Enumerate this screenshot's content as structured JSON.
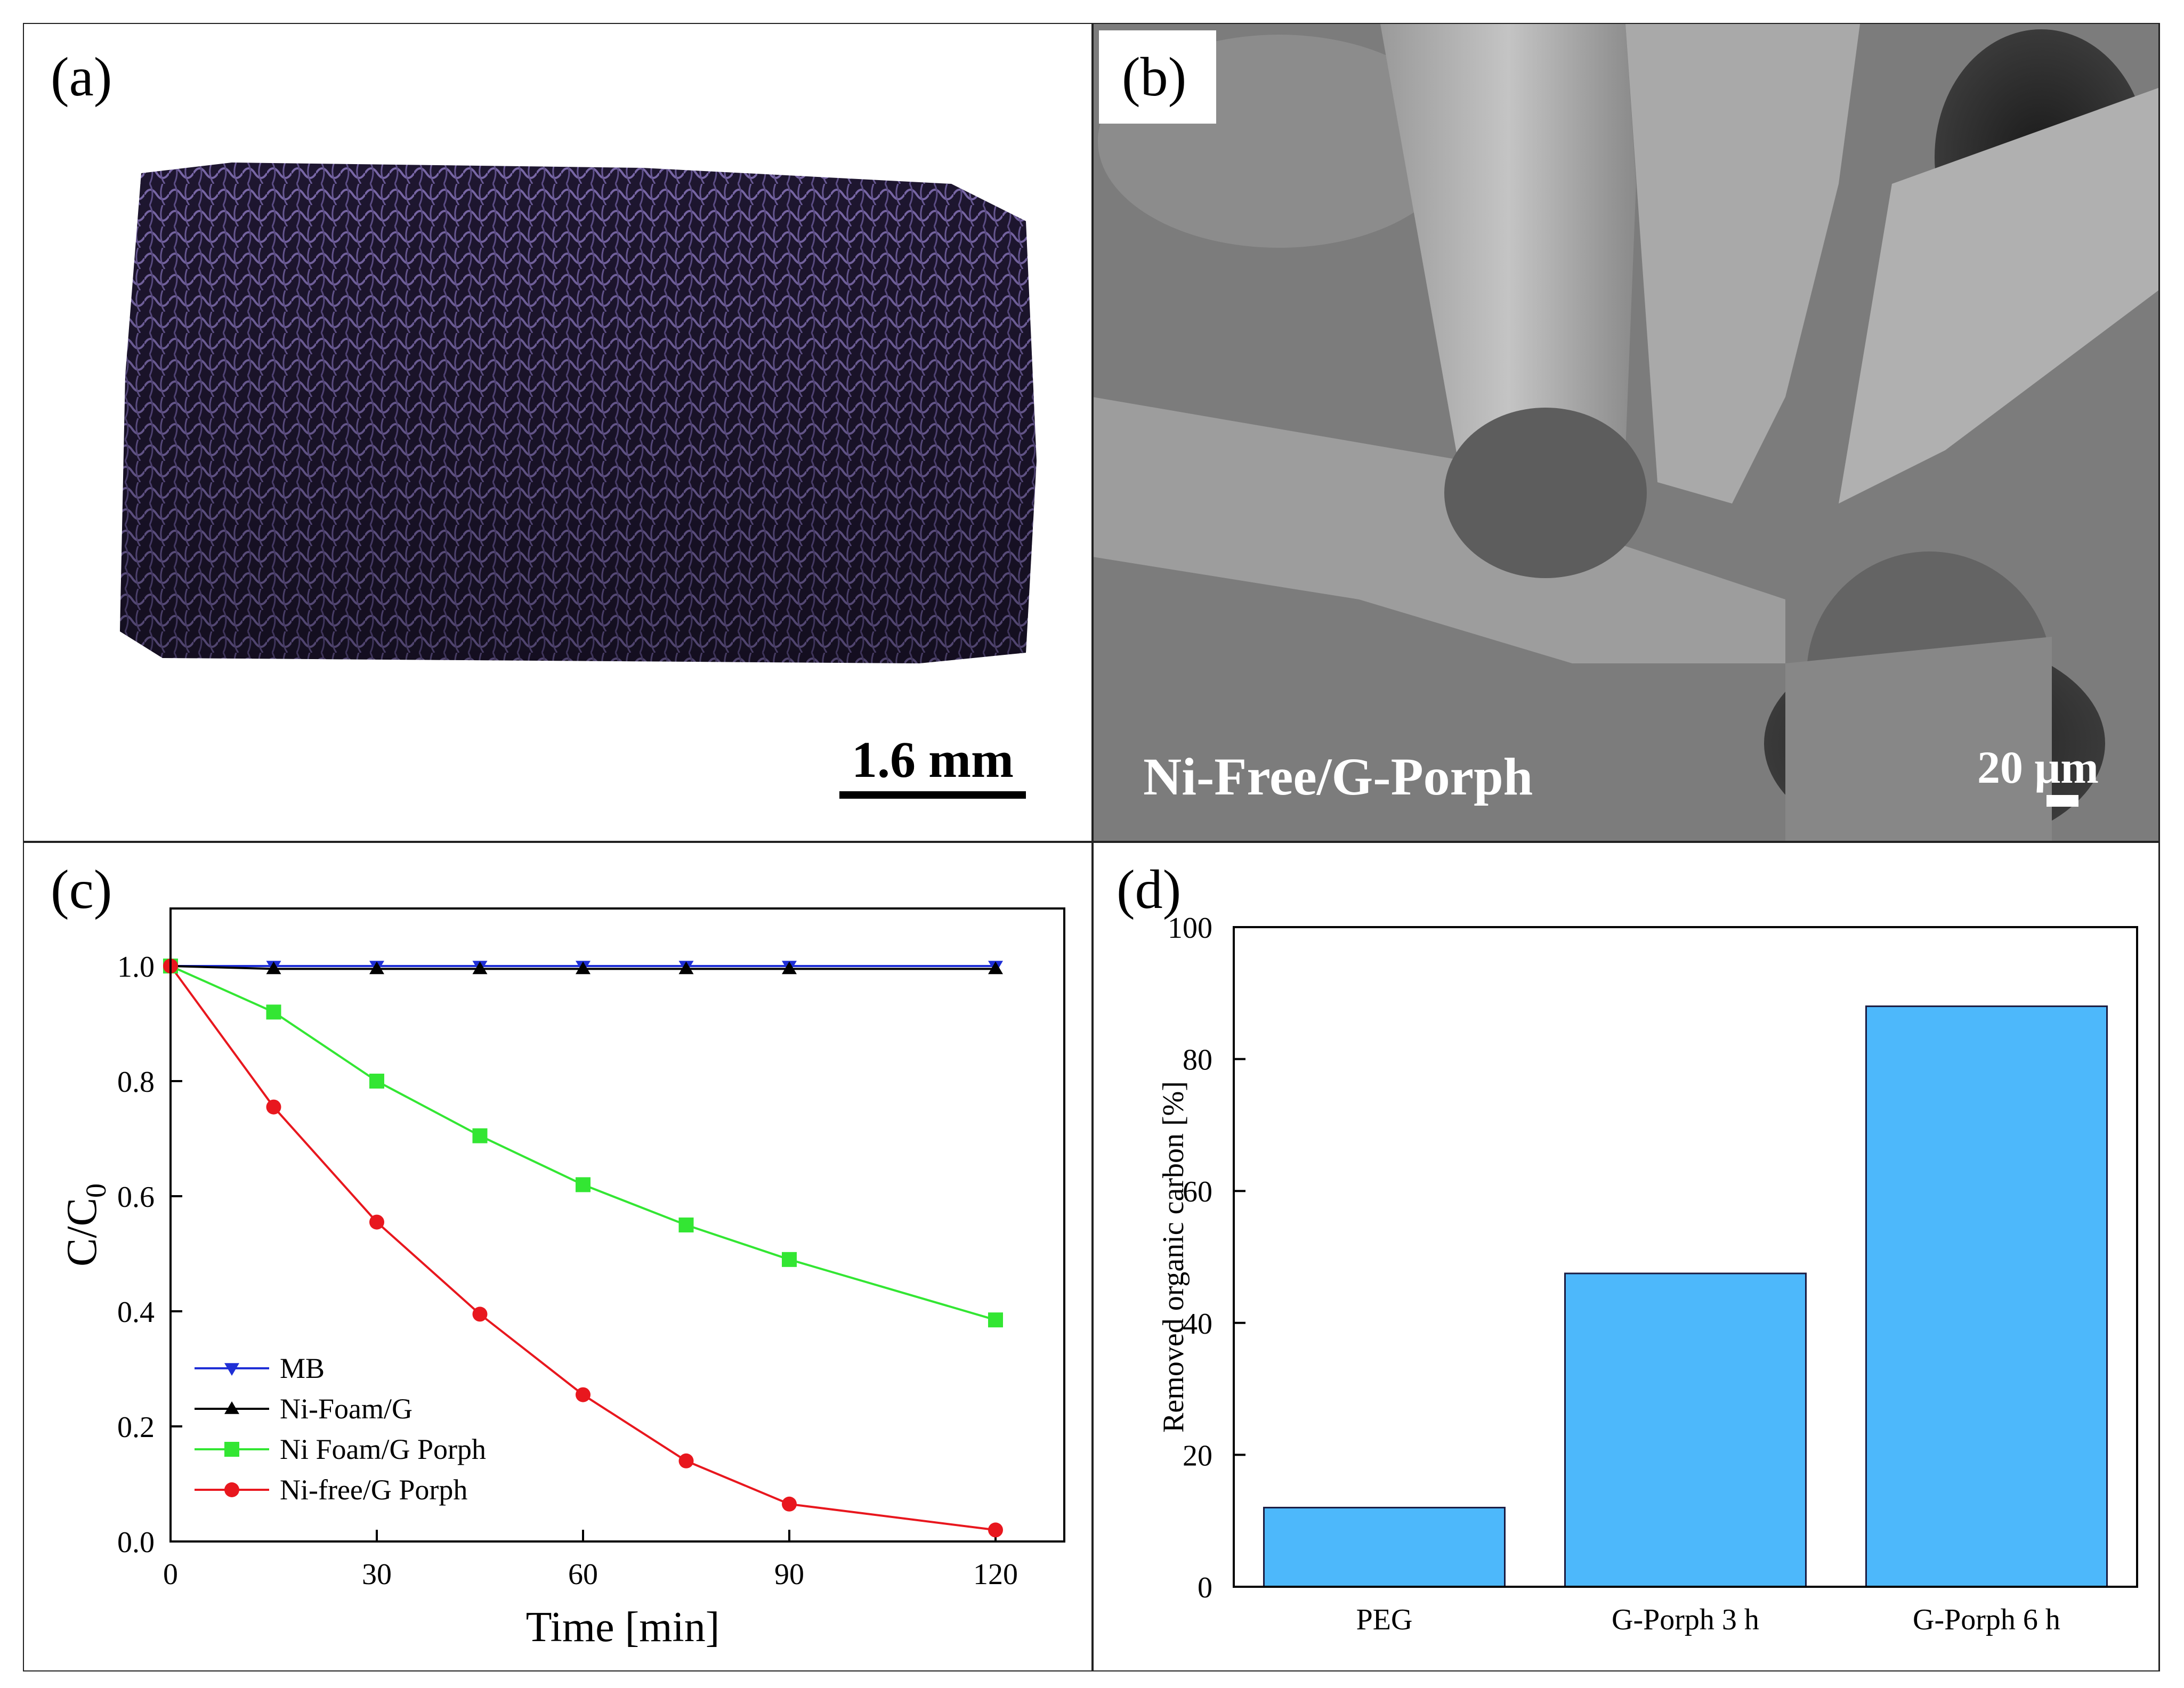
{
  "panels": {
    "a": {
      "label": "(a)",
      "scale_bar": "1.6 mm"
    },
    "b": {
      "label": "(b)",
      "caption": "Ni-Free/G-Porph",
      "scale_bar": "20 μm"
    },
    "c": {
      "label": "(c)"
    },
    "d": {
      "label": "(d)"
    }
  },
  "chart_data": [
    {
      "panel": "c",
      "type": "line",
      "xlabel": "Time [min]",
      "ylabel": "C/C0",
      "xlim": [
        0,
        130
      ],
      "ylim": [
        0,
        1.1
      ],
      "xticks": [
        0,
        30,
        60,
        90,
        120
      ],
      "yticks": [
        0.0,
        0.2,
        0.4,
        0.6,
        0.8,
        1.0
      ],
      "x": [
        0,
        15,
        30,
        45,
        60,
        75,
        90,
        120
      ],
      "legend_position": "bottom-left",
      "series": [
        {
          "name": "MB",
          "marker": "triangle-down",
          "color": "#1f2fd6",
          "values": [
            1.0,
            1.0,
            1.0,
            1.0,
            1.0,
            1.0,
            1.0,
            1.0
          ]
        },
        {
          "name": "Ni-Foam/G",
          "marker": "triangle-up",
          "color": "#000000",
          "values": [
            1.0,
            0.995,
            0.995,
            0.995,
            0.995,
            0.995,
            0.995,
            0.995
          ]
        },
        {
          "name": "Ni Foam/G Porph",
          "marker": "square",
          "color": "#33e633",
          "values": [
            1.0,
            0.92,
            0.8,
            0.705,
            0.62,
            0.55,
            0.49,
            0.385
          ]
        },
        {
          "name": "Ni-free/G Porph",
          "marker": "circle",
          "color": "#e8171e",
          "values": [
            1.0,
            0.755,
            0.555,
            0.395,
            0.255,
            0.14,
            0.065,
            0.02
          ]
        }
      ]
    },
    {
      "panel": "d",
      "type": "bar",
      "categories": [
        "PEG",
        "G-Porph 3 h",
        "G-Porph 6 h"
      ],
      "values": [
        12,
        47.5,
        88
      ],
      "ylabel": "Removed organic carbon [%]",
      "ylim": [
        0,
        100
      ],
      "yticks": [
        0,
        20,
        40,
        60,
        80,
        100
      ],
      "bar_color": "#4db8fb"
    }
  ]
}
